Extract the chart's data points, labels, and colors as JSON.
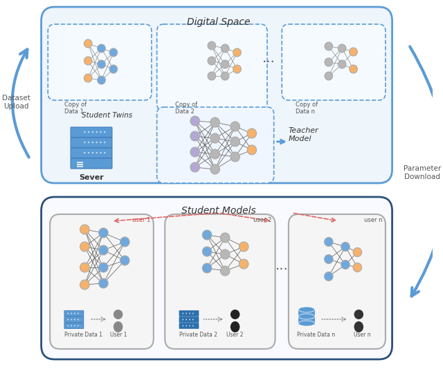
{
  "fig_width": 6.4,
  "fig_height": 5.34,
  "bg_color": "#ffffff",
  "title_digital_space": "Digital Space",
  "title_student_twins": "Student Twins",
  "title_student_models": "Student Models",
  "title_teacher_model": "Teacher\nModel",
  "title_server": "Sever",
  "label_dataset_upload": "Dataset\nUpload",
  "label_parameter_download": "Parameter\nDownload",
  "outer_box_color_top": "#5b9bd5",
  "outer_box_color_bottom": "#4472c4",
  "dashed_box_color": "#5b9bd5",
  "node_blue": "#6fa8dc",
  "node_orange": "#f6b26b",
  "node_gray": "#b7b7b7",
  "node_purple": "#b4a7d6",
  "node_light_blue": "#a4c2f4",
  "line_color": "#666666",
  "arrow_color": "#5b9bd5",
  "dashed_arrow_color": "#ea9999",
  "server_color": "#5b9bd5",
  "cloud_color": "#cfe2f3"
}
